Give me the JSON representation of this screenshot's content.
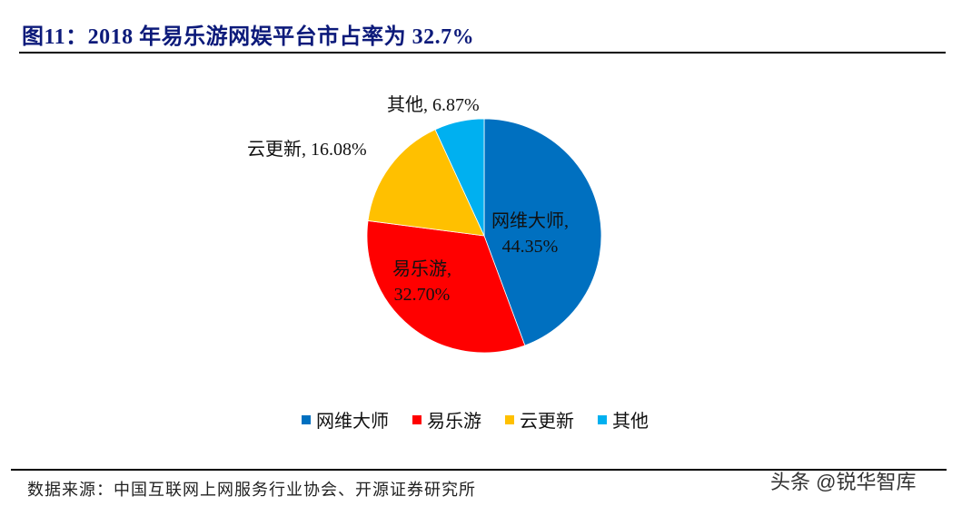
{
  "header": {
    "title": "图11：2018 年易乐游网娱平台市占率为 32.7%"
  },
  "footer": {
    "source": "数据来源：中国互联网上网服务行业协会、开源证券研究所",
    "watermark": "头条 @锐华智库"
  },
  "chart_data": {
    "type": "pie",
    "title": "2018 年易乐游网娱平台市占率为 32.7%",
    "start_angle": "12 o'clock, clockwise",
    "categories": [
      "网维大师",
      "易乐游",
      "云更新",
      "其他"
    ],
    "values": [
      44.35,
      32.7,
      16.08,
      6.87
    ],
    "unit": "%",
    "colors": [
      "#0070c0",
      "#ff0000",
      "#ffc000",
      "#00b0f0"
    ],
    "data_labels": [
      {
        "line1": "网维大师,",
        "line2": "44.35%"
      },
      {
        "line1": "易乐游,",
        "line2": "32.70%"
      },
      {
        "line1": "云更新, 16.08%",
        "line2": ""
      },
      {
        "line1": "其他, 6.87%",
        "line2": ""
      }
    ],
    "legend_position": "bottom"
  },
  "legend": {
    "items": [
      {
        "label": "网维大师",
        "color": "#0070c0"
      },
      {
        "label": "易乐游",
        "color": "#ff0000"
      },
      {
        "label": "云更新",
        "color": "#ffc000"
      },
      {
        "label": "其他",
        "color": "#00b0f0"
      }
    ]
  }
}
